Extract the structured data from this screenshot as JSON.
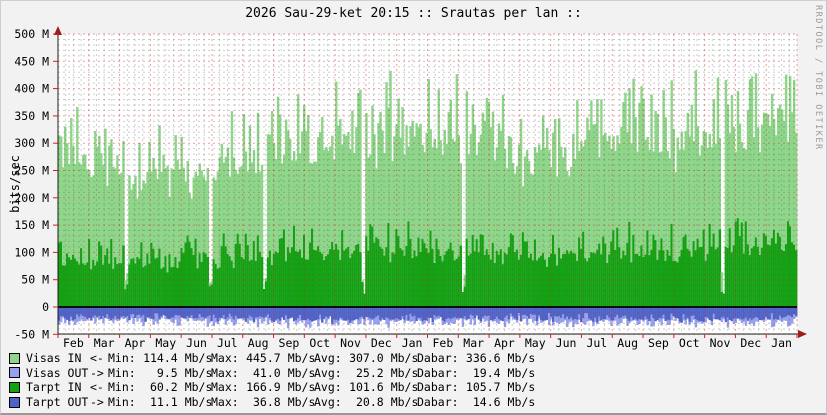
{
  "watermark": "RRDTOOL / TOBI OETIKER",
  "chart_data": {
    "type": "area",
    "title": "2026 Sau-29-ket 20:15 :: Srautas per lan ::",
    "ylabel": "bits/sec",
    "unit": "Mb/s",
    "ylim": [
      -50,
      500
    ],
    "grid": "on",
    "legend_position": "bottom",
    "y_tick_labels": [
      "500 M",
      "450 M",
      "400 M",
      "350 M",
      "300 M",
      "250 M",
      "200 M",
      "150 M",
      "100 M",
      "50 M",
      "0",
      "-50 M"
    ],
    "y_tick_values": [
      500,
      450,
      400,
      350,
      300,
      250,
      200,
      150,
      100,
      50,
      0,
      -50
    ],
    "x_months": [
      "Feb",
      "Mar",
      "Apr",
      "May",
      "Jun",
      "Jul",
      "Aug",
      "Sep",
      "Oct",
      "Nov",
      "Dec",
      "Jan",
      "Feb",
      "Mar",
      "Apr",
      "May",
      "Jun",
      "Jul",
      "Aug",
      "Sep",
      "Oct",
      "Nov",
      "Dec",
      "Jan"
    ],
    "axis_color": "#1c1c1c",
    "arrow_color": "#9b1d1d",
    "tick_color": "#cc2222",
    "major_grid_color": "rgba(207,42,42,0.45)",
    "minor_grid_color": "rgba(90,90,90,0.30)",
    "zero_line_color": "#000000",
    "plot_bg": "#ffffff",
    "gap_columns": [
      33,
      75,
      102,
      151,
      201,
      330
    ],
    "columns": 368,
    "legend_prefixes": {
      "min": "Min:",
      "max": "Max:",
      "avg": "Avg:",
      "dabar": "Dabar:"
    },
    "series": [
      {
        "name": "Visas IN",
        "direction": "<-",
        "color": "#8FD68A",
        "sign": 1,
        "monthly_base": [
          300,
          285,
          258,
          252,
          255,
          265,
          278,
          302,
          310,
          312,
          318,
          328,
          330,
          318,
          312,
          295,
          288,
          298,
          312,
          322,
          305,
          322,
          338,
          352
        ],
        "monthly_peak": [
          385,
          375,
          345,
          335,
          340,
          350,
          368,
          400,
          420,
          428,
          440,
          445,
          442,
          425,
          405,
          372,
          368,
          392,
          420,
          432,
          418,
          445,
          452,
          448
        ],
        "stats": {
          "min": "114.4",
          "max": "445.7",
          "avg": "307.0",
          "dabar": "336.6"
        }
      },
      {
        "name": "Visas OUT",
        "direction": "->",
        "color": "#99A1EF",
        "sign": -1,
        "monthly_base": [
          26,
          25,
          24,
          24,
          25,
          26,
          27,
          27,
          28,
          28,
          27,
          27,
          26,
          26,
          25,
          25,
          26,
          27,
          27,
          26,
          26,
          27,
          27,
          26
        ],
        "monthly_peak": [
          38,
          38,
          38,
          38,
          38,
          38,
          38,
          38,
          38,
          38,
          38,
          38,
          38,
          38,
          38,
          38,
          38,
          38,
          38,
          38,
          38,
          38,
          38,
          38
        ],
        "stats": {
          "min": "9.5",
          "max": "41.0",
          "avg": "25.2",
          "dabar": "19.4"
        }
      },
      {
        "name": "Tarpt IN",
        "direction": "<-",
        "color": "#12A212",
        "sign": 1,
        "monthly_base": [
          95,
          92,
          89,
          87,
          88,
          92,
          96,
          100,
          103,
          105,
          107,
          108,
          106,
          103,
          100,
          97,
          95,
          99,
          104,
          107,
          102,
          108,
          111,
          113
        ],
        "monthly_peak": [
          138,
          132,
          128,
          126,
          130,
          136,
          142,
          150,
          153,
          156,
          158,
          161,
          156,
          151,
          148,
          144,
          142,
          150,
          158,
          161,
          152,
          162,
          166,
          165
        ],
        "stats": {
          "min": "60.2",
          "max": "166.9",
          "avg": "101.6",
          "dabar": "105.7"
        }
      },
      {
        "name": "Tarpt OUT",
        "direction": "->",
        "color": "#5063C8",
        "sign": -1,
        "monthly_base": [
          20,
          20,
          19,
          19,
          19,
          20,
          21,
          21,
          22,
          22,
          21,
          21,
          20,
          20,
          20,
          19,
          20,
          21,
          21,
          20,
          20,
          21,
          21,
          20
        ],
        "monthly_peak": [
          30,
          30,
          30,
          30,
          30,
          30,
          30,
          30,
          30,
          30,
          30,
          30,
          30,
          30,
          30,
          30,
          30,
          30,
          30,
          30,
          30,
          30,
          30,
          30
        ],
        "stats": {
          "min": "11.1",
          "max": "36.8",
          "avg": "20.8",
          "dabar": "14.6"
        }
      }
    ]
  }
}
